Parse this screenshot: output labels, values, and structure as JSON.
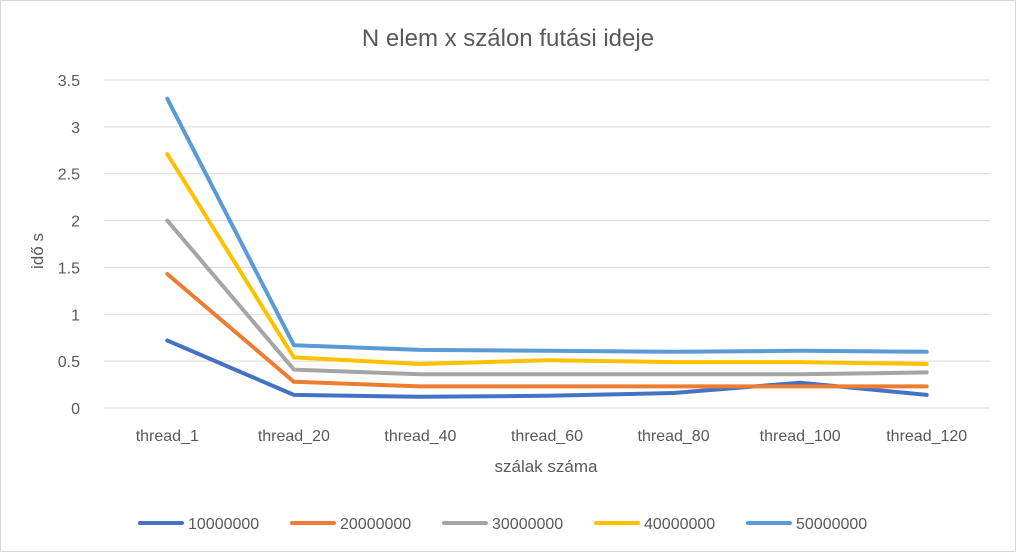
{
  "chart_data": {
    "type": "line",
    "title": "N elem x szálon futási ideje",
    "xlabel": "szálak száma",
    "ylabel": "idő s",
    "categories": [
      "thread_1",
      "thread_20",
      "thread_40",
      "thread_60",
      "thread_80",
      "thread_100",
      "thread_120"
    ],
    "ylim": [
      0,
      3.5
    ],
    "yticks": [
      "0",
      "0.5",
      "1",
      "1.5",
      "2",
      "2.5",
      "3",
      "3.5"
    ],
    "grid": true,
    "legend_position": "bottom",
    "series": [
      {
        "name": "10000000",
        "color": "#4472C4",
        "values": [
          0.72,
          0.14,
          0.12,
          0.13,
          0.16,
          0.27,
          0.14
        ]
      },
      {
        "name": "20000000",
        "color": "#ED7D31",
        "values": [
          1.43,
          0.28,
          0.23,
          0.23,
          0.23,
          0.23,
          0.23
        ]
      },
      {
        "name": "30000000",
        "color": "#A5A5A5",
        "values": [
          2.0,
          0.41,
          0.36,
          0.36,
          0.36,
          0.36,
          0.38
        ]
      },
      {
        "name": "40000000",
        "color": "#FFC000",
        "values": [
          2.71,
          0.54,
          0.47,
          0.51,
          0.49,
          0.49,
          0.47
        ]
      },
      {
        "name": "50000000",
        "color": "#5B9BD5",
        "values": [
          3.3,
          0.67,
          0.62,
          0.61,
          0.6,
          0.61,
          0.6
        ]
      }
    ]
  }
}
